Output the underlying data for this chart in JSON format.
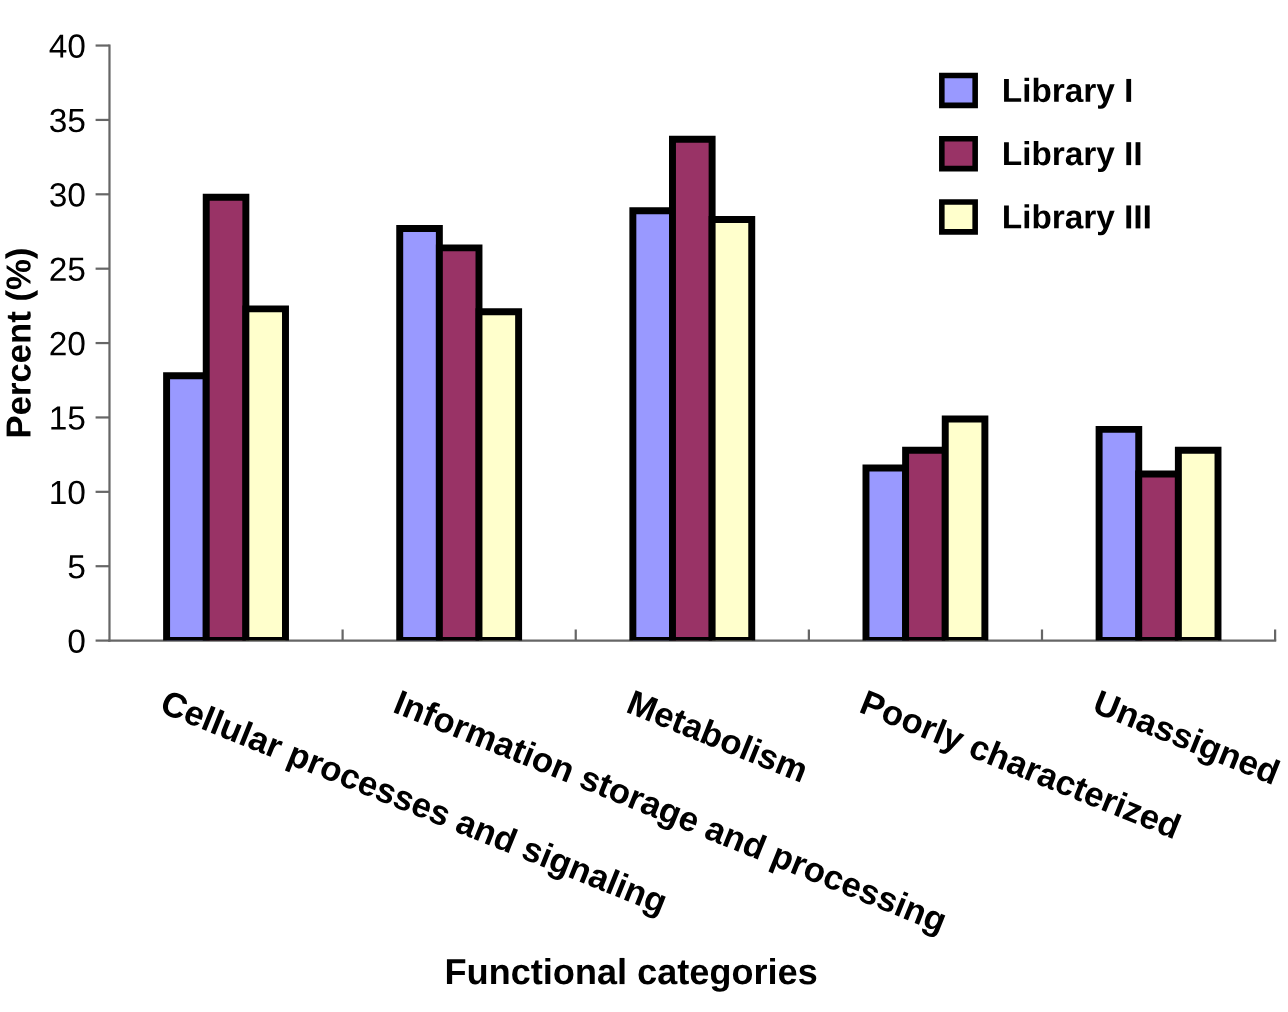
{
  "chart_data": {
    "type": "bar",
    "xlabel": "Functional categories",
    "ylabel": "Percent (%)",
    "categories": [
      "Cellular processes and signaling",
      "Information storage and processing",
      "Metabolism",
      "Poorly characterized",
      "Unassigned"
    ],
    "series": [
      {
        "name": "Library I",
        "color": "#9999ff",
        "values": [
          17.8,
          27.7,
          28.9,
          11.6,
          14.2
        ]
      },
      {
        "name": "Library II",
        "color": "#993366",
        "values": [
          29.8,
          26.4,
          33.7,
          12.8,
          11.2
        ]
      },
      {
        "name": "Library III",
        "color": "#ffffcc",
        "values": [
          22.3,
          22.1,
          28.3,
          14.9,
          12.8
        ]
      }
    ],
    "ylim": [
      0,
      40
    ],
    "yticks": [
      0,
      5,
      10,
      15,
      20,
      25,
      30,
      35,
      40
    ],
    "grid": false,
    "legend": "top right"
  }
}
